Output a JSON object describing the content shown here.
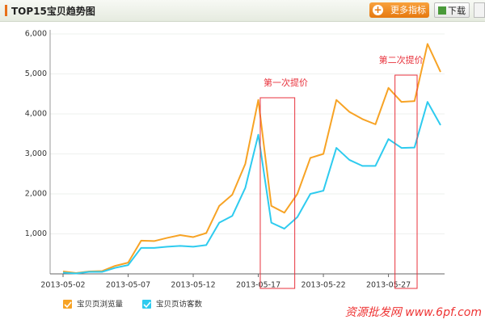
{
  "header": {
    "title": "TOP15宝贝趋势图",
    "more_button": "更多指标",
    "download_button": "下载"
  },
  "chart_data": {
    "type": "line",
    "categories": [
      "2013-05-02",
      null,
      null,
      null,
      null,
      "2013-05-07",
      null,
      null,
      null,
      null,
      "2013-05-12",
      null,
      null,
      null,
      null,
      "2013-05-17",
      null,
      null,
      null,
      null,
      "2013-05-22",
      null,
      null,
      null,
      null,
      "2013-05-27",
      null,
      null,
      null,
      null
    ],
    "series": [
      {
        "name": "宝贝页浏览量",
        "color": "#f7a325",
        "values": [
          60,
          20,
          60,
          70,
          200,
          280,
          830,
          820,
          900,
          970,
          920,
          1020,
          1700,
          1980,
          2750,
          4350,
          1700,
          1530,
          2000,
          2900,
          3000,
          4350,
          4050,
          3870,
          3740,
          4650,
          4300,
          4320,
          5750,
          5050
        ]
      },
      {
        "name": "宝贝页访客数",
        "color": "#2ecbef",
        "values": [
          30,
          10,
          50,
          50,
          150,
          220,
          650,
          650,
          680,
          700,
          680,
          720,
          1280,
          1450,
          2150,
          3480,
          1280,
          1130,
          1420,
          2000,
          2080,
          3150,
          2850,
          2700,
          2700,
          3370,
          3150,
          3160,
          4300,
          3720
        ]
      }
    ],
    "ylim": [
      0,
      6000
    ],
    "yticks": [
      {
        "value": 1000,
        "label": "1,000"
      },
      {
        "value": 2000,
        "label": "2,000"
      },
      {
        "value": 3000,
        "label": "3,000"
      },
      {
        "value": 4000,
        "label": "4,000"
      },
      {
        "value": 5000,
        "label": "5,000"
      },
      {
        "value": 6000,
        "label": "6,000"
      }
    ],
    "grid": true,
    "annotations": [
      "第一次提价",
      "第二次提价"
    ],
    "watermark": "资源批发网  www.6pf.com"
  }
}
